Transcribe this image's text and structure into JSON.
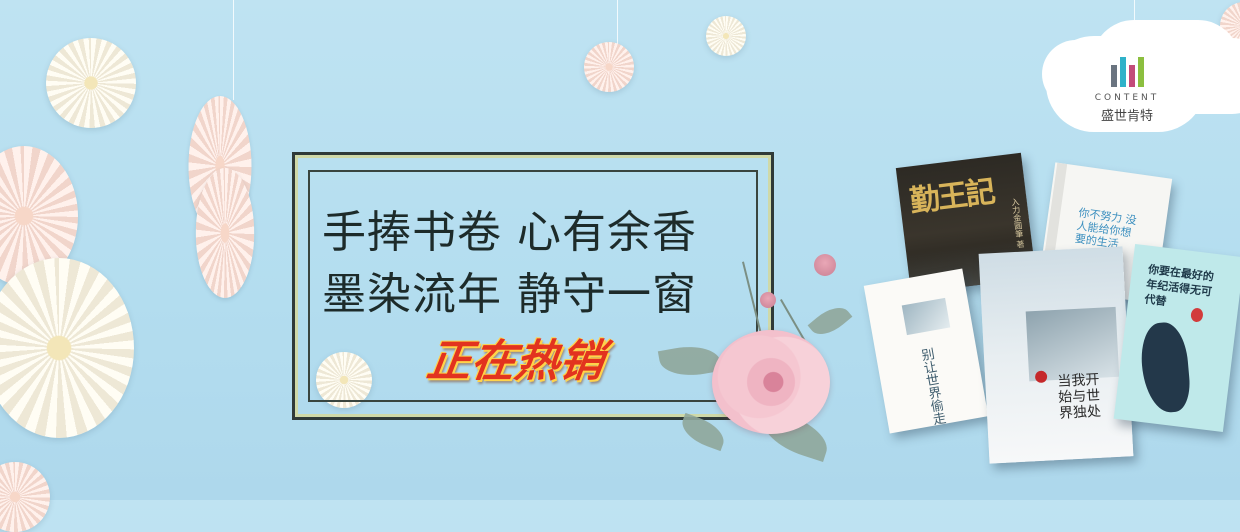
{
  "banner": {
    "headline_line1": "手捧书卷 心有余香",
    "headline_line2": "墨染流年 静守一窗",
    "sale_badge": "正在热销"
  },
  "brand": {
    "logo_text_en": "CONTENT",
    "logo_text_cn": "盛世肯特"
  },
  "books": [
    {
      "title": "勤王記",
      "author_line": "入力金圓筆 著"
    },
    {
      "title": "你不努力 没人能给你想要的生活"
    },
    {
      "title": "当我开始与世界独处"
    },
    {
      "title": "你要在最好的年纪活得无可代替"
    },
    {
      "title": "别让世界偷走你"
    }
  ],
  "colors": {
    "background": "#b3ddef",
    "headline": "#1d2b2a",
    "sale_badge": "#e2331f",
    "sale_badge_outline": "#ffd34a",
    "frame": "#2f3a38"
  }
}
